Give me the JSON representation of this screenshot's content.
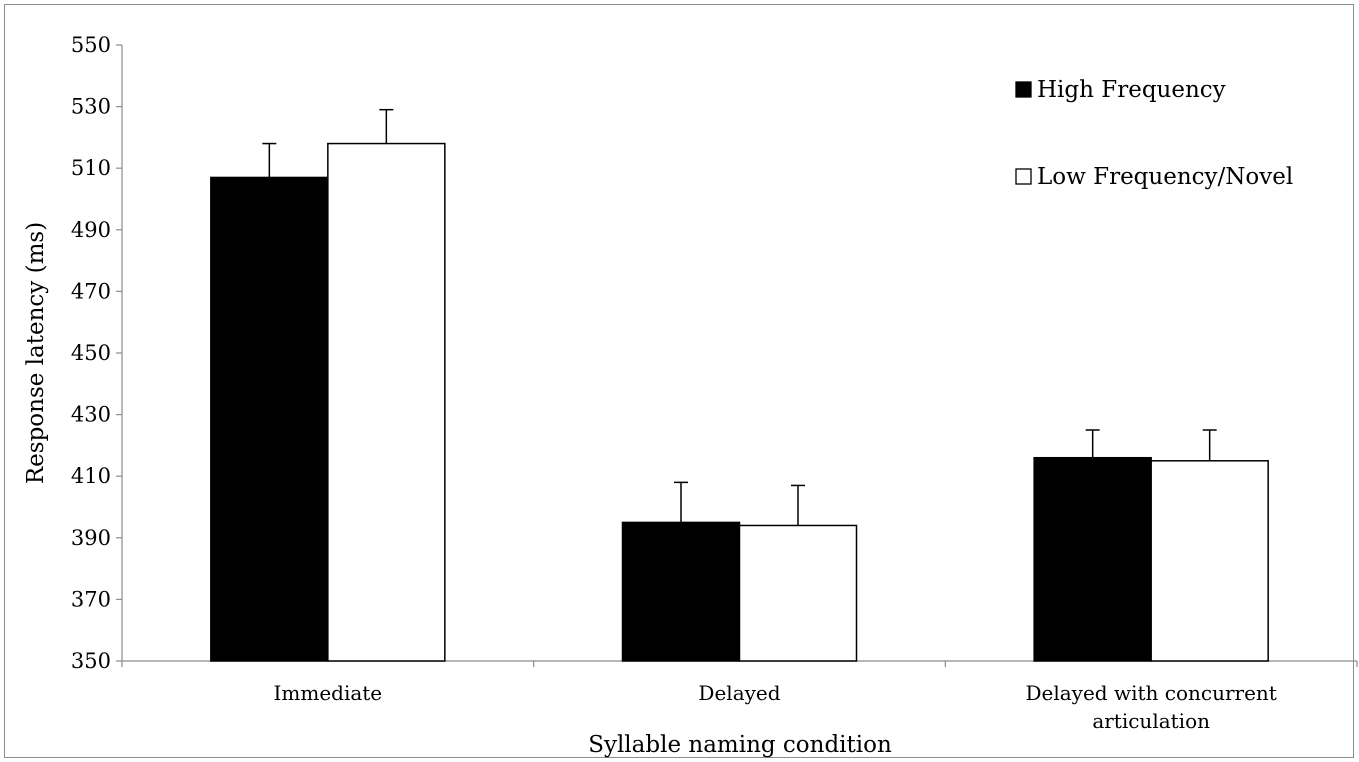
{
  "chart_data": {
    "type": "bar",
    "title": "",
    "xlabel": "Syllable naming condition",
    "ylabel": "Response latency (ms)",
    "ylim": [
      350,
      550
    ],
    "yticks": [
      350,
      370,
      390,
      410,
      430,
      450,
      470,
      490,
      510,
      530,
      550
    ],
    "categories": [
      [
        "Immediate"
      ],
      [
        "Delayed"
      ],
      [
        "Delayed with concurrent",
        "articulation"
      ]
    ],
    "series": [
      {
        "name": "High Frequency",
        "color": "#000000",
        "values": [
          507,
          395,
          416
        ],
        "errors": [
          11,
          13,
          9
        ]
      },
      {
        "name": "Low Frequency/Novel",
        "color": "#ffffff",
        "values": [
          518,
          394,
          415
        ],
        "errors": [
          11,
          13,
          10
        ]
      }
    ],
    "grid": false,
    "legend_position": "top-right"
  }
}
